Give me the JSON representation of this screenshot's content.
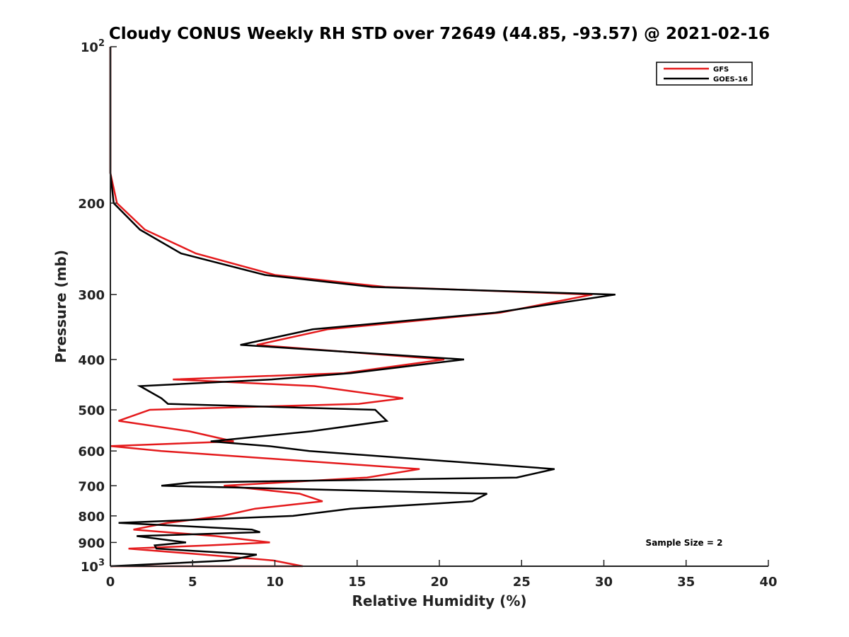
{
  "chart_data": {
    "type": "line",
    "title": "Cloudy CONUS Weekly RH STD over 72649 (44.85, -93.57) @ 2021-02-16",
    "xlabel": "Relative Humidity (%)",
    "ylabel": "Pressure (mb)",
    "xlim": [
      0,
      40
    ],
    "ylim": [
      100,
      1000
    ],
    "yscale": "log",
    "y_reversed": true,
    "grid": false,
    "legend_position": "top-right",
    "x_ticks": [
      "0",
      "5",
      "10",
      "15",
      "20",
      "25",
      "30",
      "35",
      "40"
    ],
    "x_tick_values": [
      0,
      5,
      10,
      15,
      20,
      25,
      30,
      35,
      40
    ],
    "y_ticks": [
      {
        "value": 100,
        "base": "10",
        "exp": "2"
      },
      {
        "value": 200,
        "base": "200",
        "exp": ""
      },
      {
        "value": 300,
        "base": "300",
        "exp": ""
      },
      {
        "value": 400,
        "base": "400",
        "exp": ""
      },
      {
        "value": 500,
        "base": "500",
        "exp": ""
      },
      {
        "value": 600,
        "base": "600",
        "exp": ""
      },
      {
        "value": 700,
        "base": "700",
        "exp": ""
      },
      {
        "value": 800,
        "base": "800",
        "exp": ""
      },
      {
        "value": 900,
        "base": "900",
        "exp": ""
      },
      {
        "value": 1000,
        "base": "10",
        "exp": "3"
      }
    ],
    "annotation": "Sample Size = 2",
    "series": [
      {
        "name": "GFS",
        "color": "#e41a1c",
        "points": [
          [
            0,
            100
          ],
          [
            0,
            150
          ],
          [
            0,
            175
          ],
          [
            0.4,
            200
          ],
          [
            2.1,
            225
          ],
          [
            5.2,
            250
          ],
          [
            10,
            275
          ],
          [
            16.7,
            290
          ],
          [
            29.3,
            300
          ],
          [
            23.7,
            325
          ],
          [
            13.2,
            350
          ],
          [
            8.9,
            375
          ],
          [
            20.3,
            400
          ],
          [
            14.2,
            425
          ],
          [
            3.8,
            437
          ],
          [
            12.4,
            450
          ],
          [
            17.8,
            475
          ],
          [
            15.1,
            487
          ],
          [
            2.4,
            500
          ],
          [
            0.5,
            525
          ],
          [
            4.8,
            550
          ],
          [
            7.5,
            575
          ],
          [
            0,
            587
          ],
          [
            3.1,
            600
          ],
          [
            18.8,
            650
          ],
          [
            15.6,
            675
          ],
          [
            6.9,
            700
          ],
          [
            11.5,
            725
          ],
          [
            12.9,
            750
          ],
          [
            8.8,
            775
          ],
          [
            6.8,
            800
          ],
          [
            3.5,
            825
          ],
          [
            1.4,
            850
          ],
          [
            6.4,
            875
          ],
          [
            9.7,
            900
          ],
          [
            5.9,
            912
          ],
          [
            1.1,
            925
          ],
          [
            5.7,
            950
          ],
          [
            9.9,
            975
          ],
          [
            11.7,
            1000
          ],
          [
            0,
            1000
          ]
        ]
      },
      {
        "name": "GOES-16",
        "color": "#000000",
        "points": [
          [
            0,
            100
          ],
          [
            0,
            150
          ],
          [
            0,
            175
          ],
          [
            0.2,
            200
          ],
          [
            1.8,
            225
          ],
          [
            4.3,
            250
          ],
          [
            9.4,
            275
          ],
          [
            15.9,
            290
          ],
          [
            30.7,
            300
          ],
          [
            23.4,
            325
          ],
          [
            12.3,
            350
          ],
          [
            7.9,
            375
          ],
          [
            21.5,
            400
          ],
          [
            14.6,
            425
          ],
          [
            9.8,
            437
          ],
          [
            1.8,
            450
          ],
          [
            3.1,
            475
          ],
          [
            3.5,
            487
          ],
          [
            16.1,
            500
          ],
          [
            16.8,
            525
          ],
          [
            12.2,
            550
          ],
          [
            6.1,
            575
          ],
          [
            9.6,
            587
          ],
          [
            12.1,
            600
          ],
          [
            27,
            650
          ],
          [
            24.7,
            675
          ],
          [
            4.9,
            690
          ],
          [
            3.1,
            700
          ],
          [
            22.9,
            725
          ],
          [
            22,
            750
          ],
          [
            14.6,
            775
          ],
          [
            11.1,
            800
          ],
          [
            0.5,
            825
          ],
          [
            8.6,
            850
          ],
          [
            9.1,
            860
          ],
          [
            1.6,
            875
          ],
          [
            4.6,
            900
          ],
          [
            2.7,
            912
          ],
          [
            2.8,
            925
          ],
          [
            8.9,
            950
          ],
          [
            7.2,
            975
          ],
          [
            0,
            1000
          ]
        ]
      }
    ]
  }
}
